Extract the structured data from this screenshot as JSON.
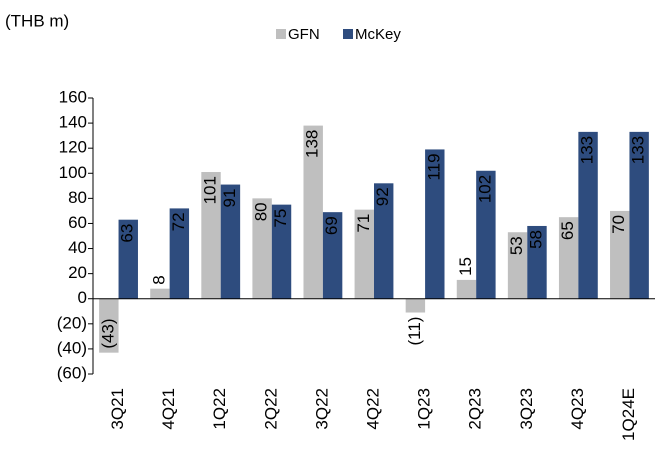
{
  "chart_data": {
    "type": "bar",
    "title": "(THB m)",
    "categories": [
      "3Q21",
      "4Q21",
      "1Q22",
      "2Q22",
      "3Q22",
      "4Q22",
      "1Q23",
      "2Q23",
      "3Q23",
      "4Q23",
      "1Q24E"
    ],
    "series": [
      {
        "name": "GFN",
        "color": "#bfbfbf",
        "values": [
          -43,
          8,
          101,
          80,
          138,
          71,
          -11,
          15,
          53,
          65,
          70
        ],
        "value_labels": [
          "(43)",
          "8",
          "101",
          "80",
          "138",
          "71",
          "(11)",
          "15",
          "53",
          "65",
          "70"
        ]
      },
      {
        "name": "McKey",
        "color": "#2e4c7e",
        "values": [
          63,
          72,
          91,
          75,
          69,
          92,
          119,
          102,
          58,
          133,
          133
        ]
      }
    ],
    "ylim": [
      -60,
      160
    ],
    "yticks": [
      {
        "value": -60,
        "label": "(60)"
      },
      {
        "value": -40,
        "label": "(40)"
      },
      {
        "value": -20,
        "label": "(20)"
      },
      0,
      20,
      40,
      60,
      80,
      100,
      120,
      140,
      160
    ],
    "legend": "top"
  }
}
